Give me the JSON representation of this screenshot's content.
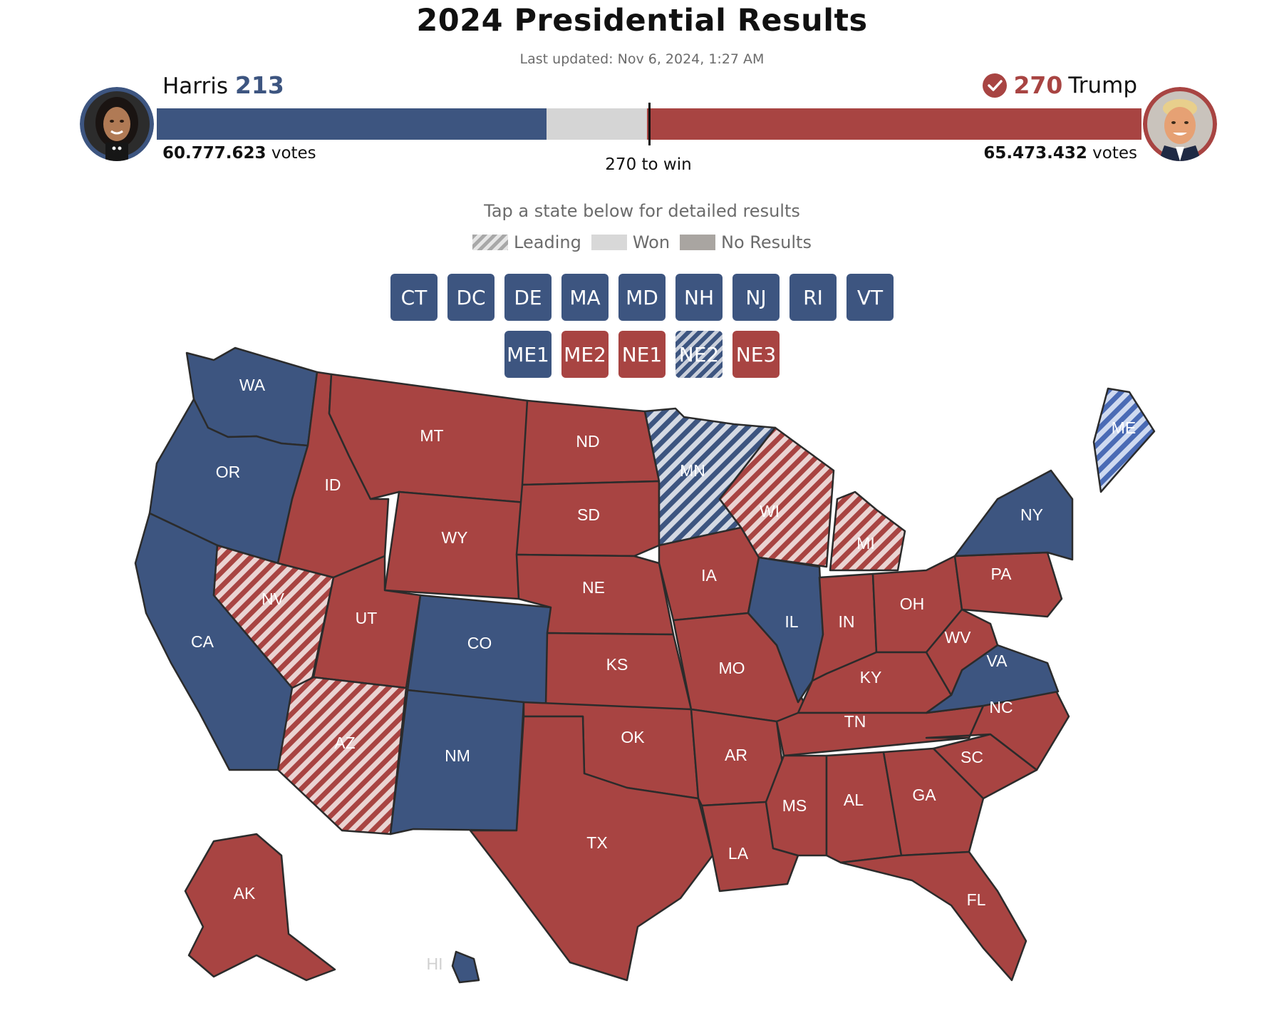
{
  "title": "2024 Presidential Results",
  "last_updated": "Last updated: Nov 6, 2024, 1:27 AM",
  "colors": {
    "democrat": "#3d5580",
    "republican": "#a84442",
    "undecided": "#d5d5d5"
  },
  "candidates": {
    "harris": {
      "name": "Harris",
      "electoral_votes": "213",
      "popular_votes": "60.777.623",
      "votes_label": "votes",
      "avatar": "harris-portrait"
    },
    "trump": {
      "name": "Trump",
      "electoral_votes": "270",
      "popular_votes": "65.473.432",
      "votes_label": "votes",
      "avatar": "trump-portrait",
      "winner_icon": "check-circle-icon"
    }
  },
  "bar": {
    "total_electoral_votes": 538,
    "harris_ev": 213,
    "trump_ev": 270,
    "threshold_label": "270 to win"
  },
  "instructions": "Tap a state below for detailed results",
  "legend": {
    "leading": "Leading",
    "won": "Won",
    "no_results": "No Results"
  },
  "small_states": [
    {
      "code": "CT",
      "party": "D",
      "status": "won"
    },
    {
      "code": "DC",
      "party": "D",
      "status": "won"
    },
    {
      "code": "DE",
      "party": "D",
      "status": "won"
    },
    {
      "code": "MA",
      "party": "D",
      "status": "won"
    },
    {
      "code": "MD",
      "party": "D",
      "status": "won"
    },
    {
      "code": "NH",
      "party": "D",
      "status": "won"
    },
    {
      "code": "NJ",
      "party": "D",
      "status": "won"
    },
    {
      "code": "RI",
      "party": "D",
      "status": "won"
    },
    {
      "code": "VT",
      "party": "D",
      "status": "won"
    }
  ],
  "districts": [
    {
      "code": "ME1",
      "party": "D",
      "status": "won"
    },
    {
      "code": "ME2",
      "party": "R",
      "status": "won"
    },
    {
      "code": "NE1",
      "party": "R",
      "status": "won"
    },
    {
      "code": "NE2",
      "party": "D",
      "status": "leading"
    },
    {
      "code": "NE3",
      "party": "R",
      "status": "won"
    }
  ],
  "map_states": [
    {
      "code": "WA",
      "party": "D",
      "status": "won"
    },
    {
      "code": "OR",
      "party": "D",
      "status": "won"
    },
    {
      "code": "CA",
      "party": "D",
      "status": "won"
    },
    {
      "code": "NV",
      "party": "R",
      "status": "leading"
    },
    {
      "code": "ID",
      "party": "R",
      "status": "won"
    },
    {
      "code": "MT",
      "party": "R",
      "status": "won"
    },
    {
      "code": "WY",
      "party": "R",
      "status": "won"
    },
    {
      "code": "UT",
      "party": "R",
      "status": "won"
    },
    {
      "code": "AZ",
      "party": "R",
      "status": "leading"
    },
    {
      "code": "CO",
      "party": "D",
      "status": "won"
    },
    {
      "code": "NM",
      "party": "D",
      "status": "won"
    },
    {
      "code": "ND",
      "party": "R",
      "status": "won"
    },
    {
      "code": "SD",
      "party": "R",
      "status": "won"
    },
    {
      "code": "NE",
      "party": "R",
      "status": "won"
    },
    {
      "code": "KS",
      "party": "R",
      "status": "won"
    },
    {
      "code": "OK",
      "party": "R",
      "status": "won"
    },
    {
      "code": "TX",
      "party": "R",
      "status": "won"
    },
    {
      "code": "MN",
      "party": "D",
      "status": "leading"
    },
    {
      "code": "IA",
      "party": "R",
      "status": "won"
    },
    {
      "code": "MO",
      "party": "R",
      "status": "won"
    },
    {
      "code": "AR",
      "party": "R",
      "status": "won"
    },
    {
      "code": "LA",
      "party": "R",
      "status": "won"
    },
    {
      "code": "WI",
      "party": "R",
      "status": "leading"
    },
    {
      "code": "IL",
      "party": "D",
      "status": "won"
    },
    {
      "code": "MI",
      "party": "R",
      "status": "leading"
    },
    {
      "code": "IN",
      "party": "R",
      "status": "won"
    },
    {
      "code": "OH",
      "party": "R",
      "status": "won"
    },
    {
      "code": "KY",
      "party": "R",
      "status": "won"
    },
    {
      "code": "TN",
      "party": "R",
      "status": "won"
    },
    {
      "code": "MS",
      "party": "R",
      "status": "won"
    },
    {
      "code": "AL",
      "party": "R",
      "status": "won"
    },
    {
      "code": "GA",
      "party": "R",
      "status": "won"
    },
    {
      "code": "FL",
      "party": "R",
      "status": "won"
    },
    {
      "code": "SC",
      "party": "R",
      "status": "won"
    },
    {
      "code": "NC",
      "party": "R",
      "status": "won"
    },
    {
      "code": "VA",
      "party": "D",
      "status": "won"
    },
    {
      "code": "WV",
      "party": "R",
      "status": "won"
    },
    {
      "code": "PA",
      "party": "R",
      "status": "won"
    },
    {
      "code": "NY",
      "party": "D",
      "status": "won"
    },
    {
      "code": "ME",
      "party": "D",
      "status": "leading"
    },
    {
      "code": "AK",
      "party": "R",
      "status": "won"
    },
    {
      "code": "HI",
      "party": "D",
      "status": "won"
    }
  ]
}
